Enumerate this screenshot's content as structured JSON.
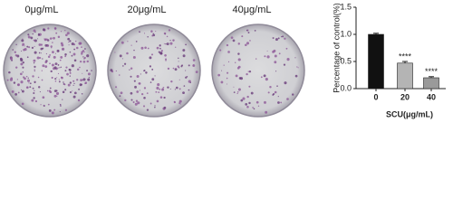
{
  "panels": [
    "0μg/mL",
    "20μg/mL",
    "40μg/mL"
  ],
  "chart_data": {
    "type": "bar",
    "y_label": "Percentage of control(%)",
    "x_label": "SCU(μg/mL)",
    "categories": [
      "0",
      "20",
      "40"
    ],
    "values": [
      1.0,
      0.47,
      0.2
    ],
    "errors": [
      0.02,
      0.03,
      0.02
    ],
    "colors": [
      "#111111",
      "#b4b4b4",
      "#9a9a9a"
    ],
    "annotations": [
      null,
      "****",
      "****"
    ],
    "ylim": [
      0,
      1.5
    ],
    "yticks": [
      {
        "value": 0,
        "label": "0.0"
      },
      {
        "value": 0.5,
        "label": "0.5"
      },
      {
        "value": 1,
        "label": "1.0"
      },
      {
        "value": 1.5,
        "label": "1.5"
      }
    ]
  }
}
